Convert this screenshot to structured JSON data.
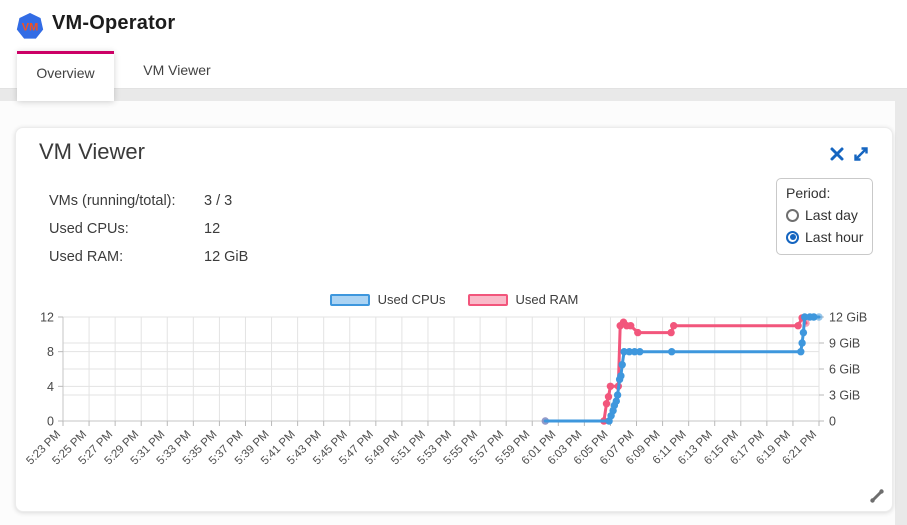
{
  "header": {
    "title": "VM-Operator",
    "logo_text": "VM"
  },
  "tabs": [
    {
      "label": "Overview",
      "active": true
    },
    {
      "label": "VM Viewer",
      "active": false
    }
  ],
  "card": {
    "title": "VM Viewer",
    "stats": [
      {
        "label": "VMs (running/total):",
        "value": "3 / 3"
      },
      {
        "label": "Used CPUs:",
        "value": "12"
      },
      {
        "label": "Used RAM:",
        "value": "12 GiB"
      }
    ],
    "period": {
      "label": "Period:",
      "options": [
        {
          "label": "Last day",
          "selected": false
        },
        {
          "label": "Last hour",
          "selected": true
        }
      ]
    }
  },
  "icons": {
    "close": "close-x-icon",
    "expand": "expand-diagonal-arrows-icon",
    "resize": "resize-grip-icon",
    "logo": "kubernetes-heptagon-vm-logo"
  },
  "colors": {
    "accent": "#cc0066",
    "icon_blue": "#1565c0",
    "used_cpus": "#3e97dd",
    "used_ram": "#f2567c"
  },
  "chart_data": {
    "type": "line",
    "title": "",
    "xlabel": "",
    "ylabel": "",
    "grid": true,
    "legend_position": "top-center",
    "x_tick_labels": [
      "5:23 PM",
      "5:25 PM",
      "5:27 PM",
      "5:29 PM",
      "5:31 PM",
      "5:33 PM",
      "5:35 PM",
      "5:37 PM",
      "5:39 PM",
      "5:41 PM",
      "5:43 PM",
      "5:45 PM",
      "5:47 PM",
      "5:49 PM",
      "5:51 PM",
      "5:53 PM",
      "5:55 PM",
      "5:57 PM",
      "5:59 PM",
      "6:01 PM",
      "6:03 PM",
      "6:05 PM",
      "6:07 PM",
      "6:09 PM",
      "6:11 PM",
      "6:13 PM",
      "6:15 PM",
      "6:17 PM",
      "6:19 PM",
      "6:21 PM"
    ],
    "x_range_minutes": [
      0,
      58
    ],
    "x_unit": "minutes after 5:23 PM",
    "left_axis": {
      "ticks": [
        0,
        4,
        8,
        12
      ],
      "labels": [
        "0",
        "4",
        "8",
        "12"
      ],
      "range": [
        0,
        12
      ],
      "series": "Used CPUs"
    },
    "right_axis": {
      "ticks": [
        0,
        3,
        6,
        9,
        12
      ],
      "labels": [
        "0",
        "3 GiB",
        "6 GiB",
        "9 GiB",
        "12 GiB"
      ],
      "range": [
        0,
        12
      ],
      "series": "Used RAM"
    },
    "legend": [
      {
        "name": "Used CPUs",
        "color": "#3e97dd",
        "fill": "#abd3f3"
      },
      {
        "name": "Used RAM",
        "color": "#f2567c",
        "fill": "#f9bac9"
      }
    ],
    "series": [
      {
        "name": "Used RAM",
        "axis": "right",
        "unit": "GiB",
        "color": "#f2567c",
        "points": [
          [
            37.0,
            0
          ],
          [
            41.5,
            0
          ],
          [
            41.7,
            2.0
          ],
          [
            41.85,
            2.8
          ],
          [
            42.0,
            4.0
          ],
          [
            42.6,
            4.0
          ],
          [
            42.75,
            11.0
          ],
          [
            43.0,
            11.4
          ],
          [
            43.25,
            11.0
          ],
          [
            43.55,
            11.0
          ],
          [
            44.1,
            10.2
          ],
          [
            46.65,
            10.2
          ],
          [
            46.85,
            11.0
          ],
          [
            56.4,
            11.0
          ],
          [
            56.7,
            11.9
          ],
          [
            57.0,
            11.3
          ]
        ]
      },
      {
        "name": "Used CPUs",
        "axis": "left",
        "unit": "CPUs",
        "color": "#3e97dd",
        "points": [
          [
            37.0,
            0
          ],
          [
            41.9,
            0
          ],
          [
            42.05,
            0.6
          ],
          [
            42.2,
            1.2
          ],
          [
            42.3,
            1.8
          ],
          [
            42.45,
            2.3
          ],
          [
            42.55,
            3.0
          ],
          [
            42.7,
            4.8
          ],
          [
            42.8,
            5.2
          ],
          [
            42.9,
            6.5
          ],
          [
            43.05,
            8
          ],
          [
            43.45,
            8
          ],
          [
            43.85,
            8
          ],
          [
            44.25,
            8
          ],
          [
            46.7,
            8
          ],
          [
            56.6,
            8
          ],
          [
            56.7,
            9
          ],
          [
            56.8,
            10.2
          ],
          [
            56.9,
            12
          ],
          [
            57.3,
            12
          ],
          [
            57.6,
            12
          ],
          [
            58.0,
            12
          ]
        ]
      }
    ]
  }
}
